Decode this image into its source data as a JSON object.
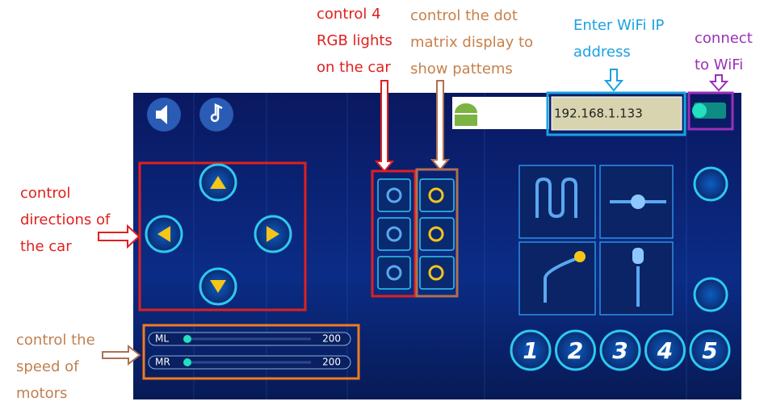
{
  "annotations": {
    "rgb_lights": [
      "control 4",
      "RGB lights",
      "on the car"
    ],
    "dot_matrix": [
      "control the dot",
      "matrix display to",
      "show pattems"
    ],
    "wifi_ip": [
      "Enter WiFi IP",
      "address"
    ],
    "connect": [
      "connect",
      "to WiFi"
    ],
    "directions": [
      "control",
      "directions of",
      "the car"
    ],
    "speed": [
      "control the",
      "speed of",
      "motors"
    ]
  },
  "ip_address": "192.168.1.133",
  "sliders": [
    {
      "label": "ML",
      "value": 200
    },
    {
      "label": "MR",
      "value": 200
    }
  ],
  "mode_buttons": [
    "1",
    "2",
    "3",
    "4",
    "5"
  ]
}
